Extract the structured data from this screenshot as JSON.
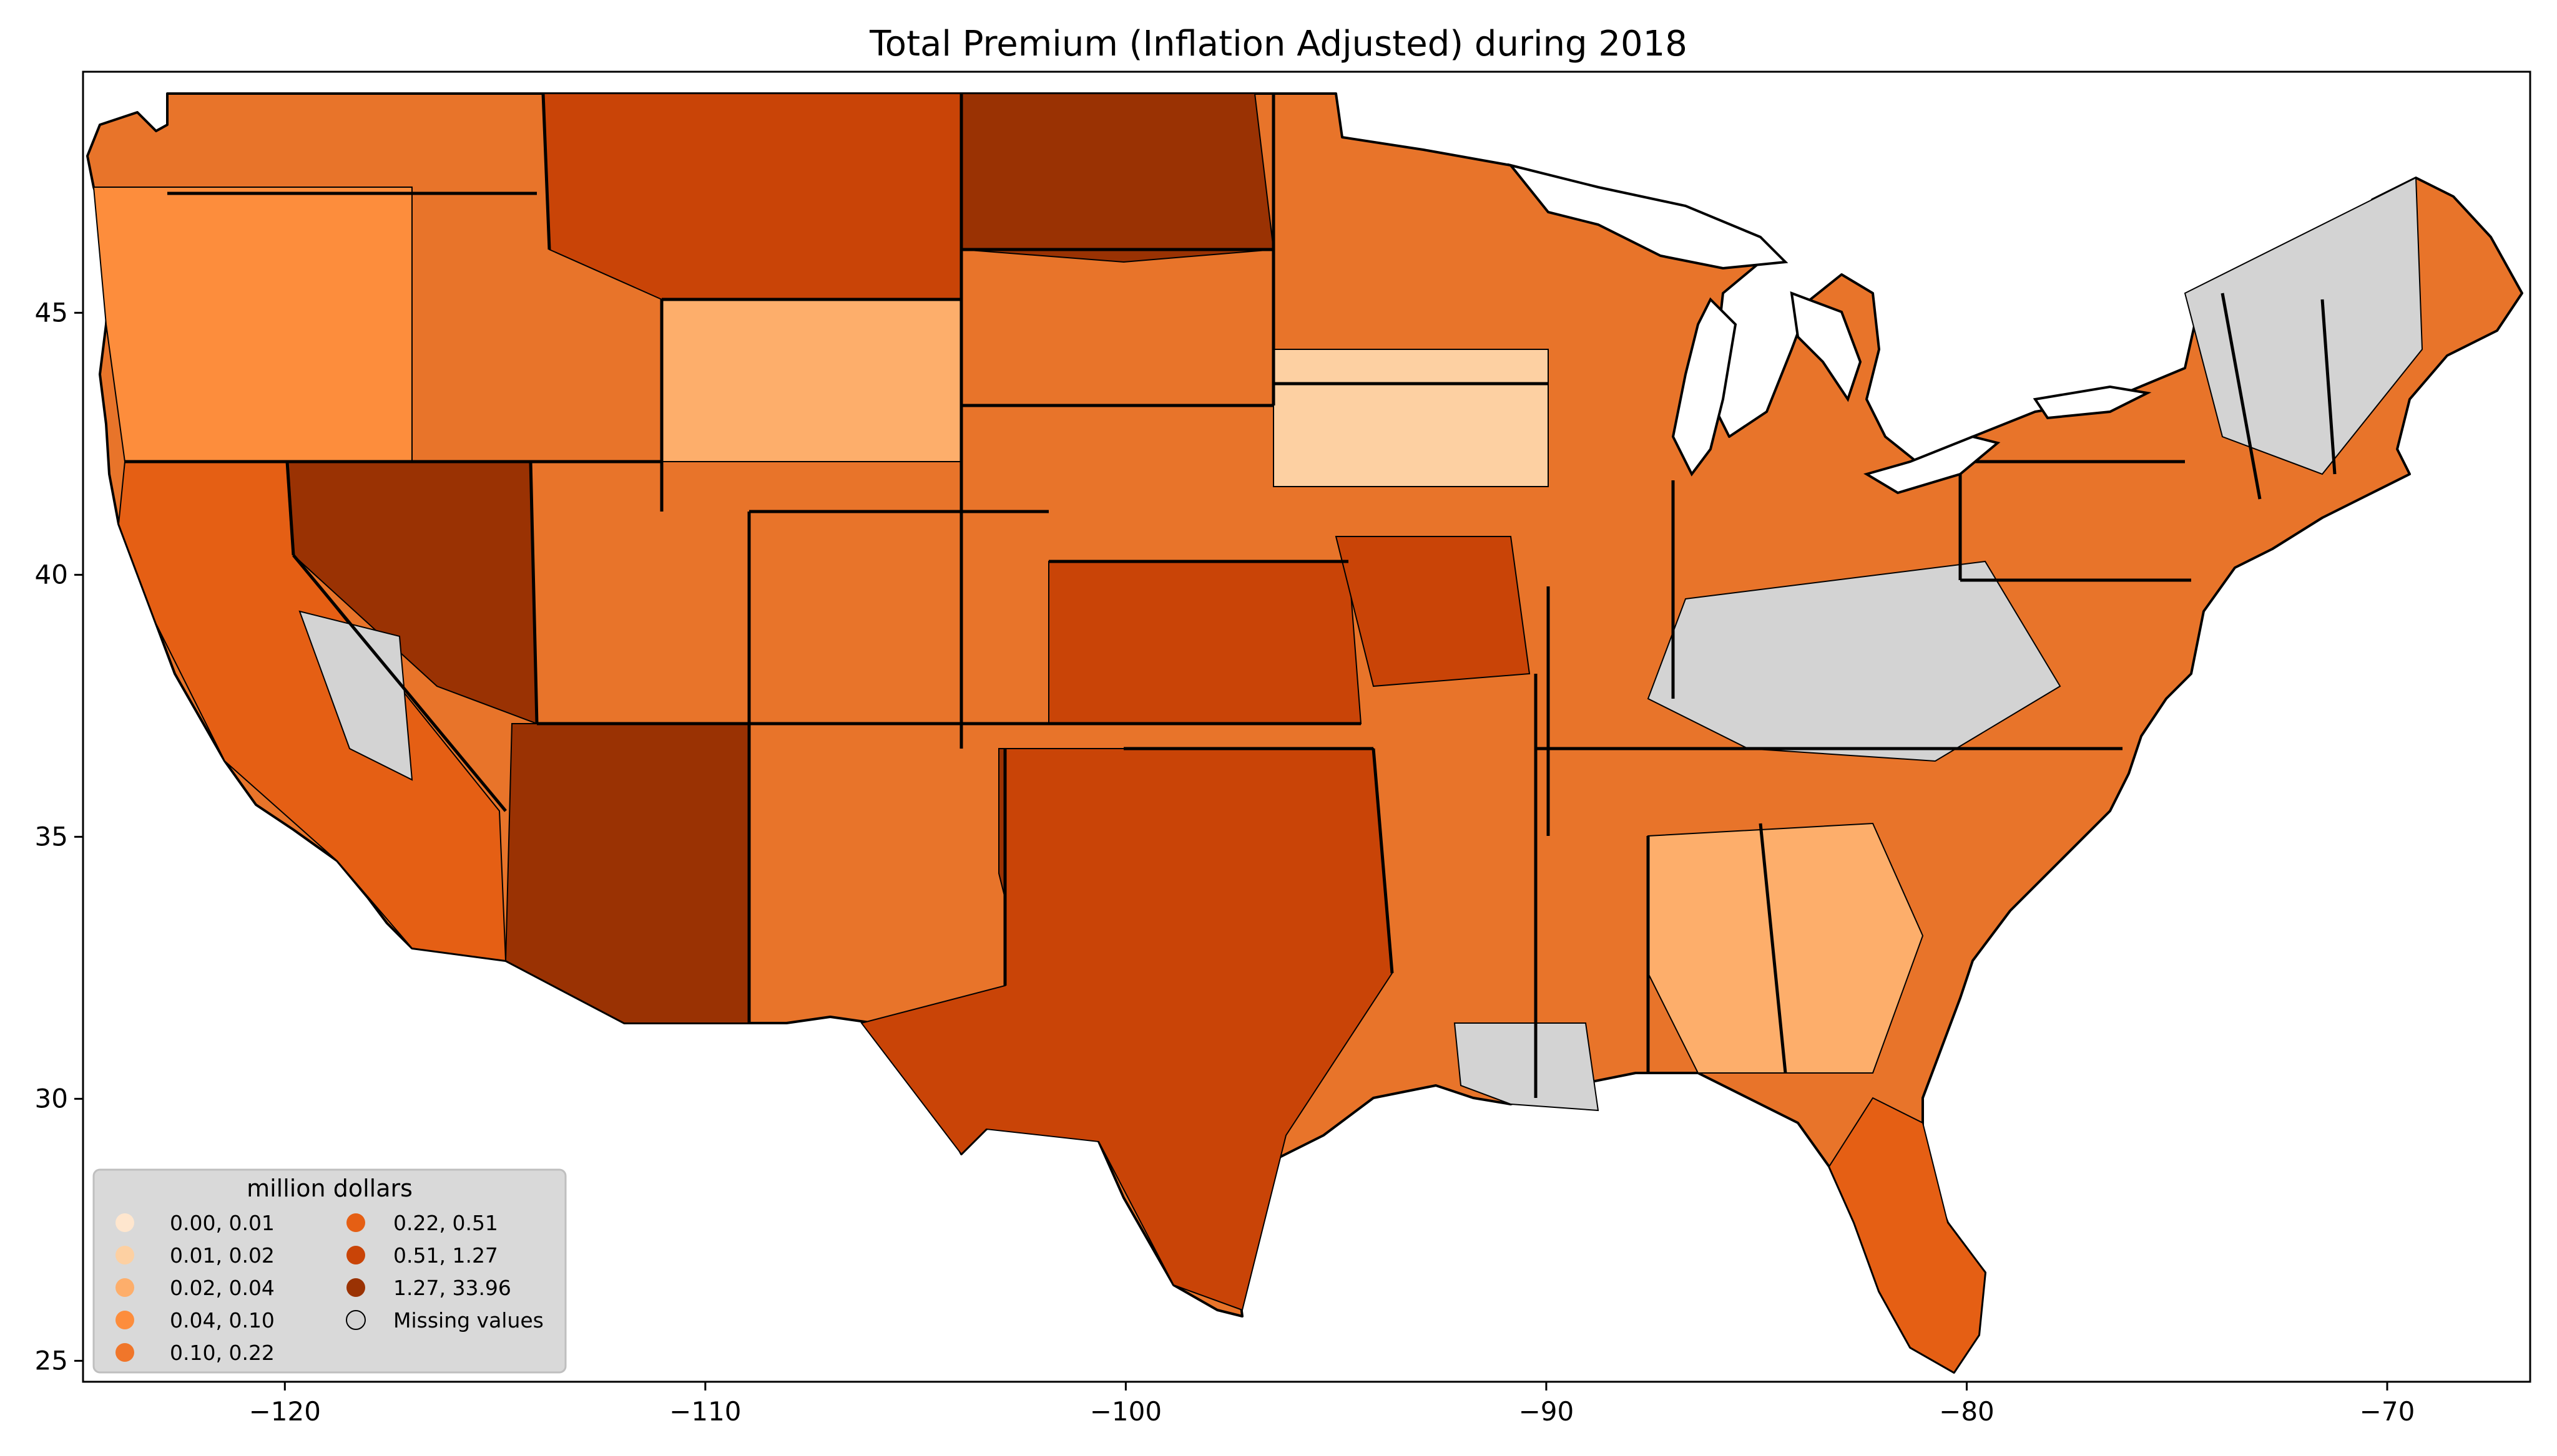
{
  "title": "Total  Premium  (Inflation Adjusted) during 2018",
  "map": {
    "x_ticks": [
      "−120",
      "−110",
      "−100",
      "−90",
      "−80",
      "−70"
    ],
    "y_ticks": [
      "45",
      "40",
      "35",
      "30",
      "25"
    ],
    "x_tick_values": [
      -120,
      -110,
      -100,
      -90,
      -80,
      -70
    ],
    "y_tick_values": [
      45,
      40,
      35,
      30,
      25
    ],
    "xlim": [
      -124.8,
      -66.6
    ],
    "ylim": [
      24.6,
      49.6
    ]
  },
  "legend": {
    "title": "million dollars",
    "items": [
      {
        "label": "0.00,  0.01",
        "color": "#fee6ce"
      },
      {
        "label": "0.01,  0.02",
        "color": "#fdd0a2"
      },
      {
        "label": "0.02,  0.04",
        "color": "#fdae6b"
      },
      {
        "label": "0.04,  0.10",
        "color": "#fd8d3c"
      },
      {
        "label": "0.10,  0.22",
        "color": "#f0762a"
      },
      {
        "label": "0.22,  0.51",
        "color": "#e55f14"
      },
      {
        "label": "0.51,  1.27",
        "color": "#c94407"
      },
      {
        "label": "1.27, 33.96",
        "color": "#9a3203"
      },
      {
        "label": "Missing values",
        "color": "#d3d3d3"
      }
    ]
  }
}
